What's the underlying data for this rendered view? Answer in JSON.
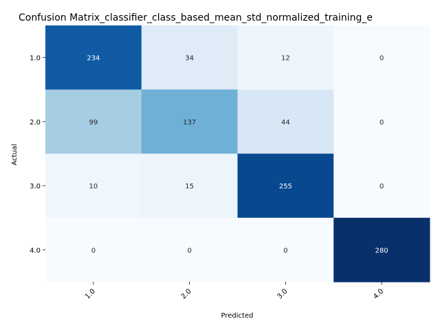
{
  "chart_data": {
    "type": "heatmap",
    "title": "Confusion Matrix_classifier_class_based_mean_std_normalized_training_e",
    "xlabel": "Predicted",
    "ylabel": "Actual",
    "x_categories": [
      "1.0",
      "2.0",
      "3.0",
      "4.0"
    ],
    "y_categories": [
      "1.0",
      "2.0",
      "3.0",
      "4.0"
    ],
    "values": [
      [
        234,
        34,
        12,
        0
      ],
      [
        99,
        137,
        44,
        0
      ],
      [
        10,
        15,
        255,
        0
      ],
      [
        0,
        0,
        0,
        280
      ]
    ],
    "vmin": 0,
    "vmax": 280,
    "colormap": "Blues",
    "colorbar": false,
    "x_tick_rotation": 45
  }
}
